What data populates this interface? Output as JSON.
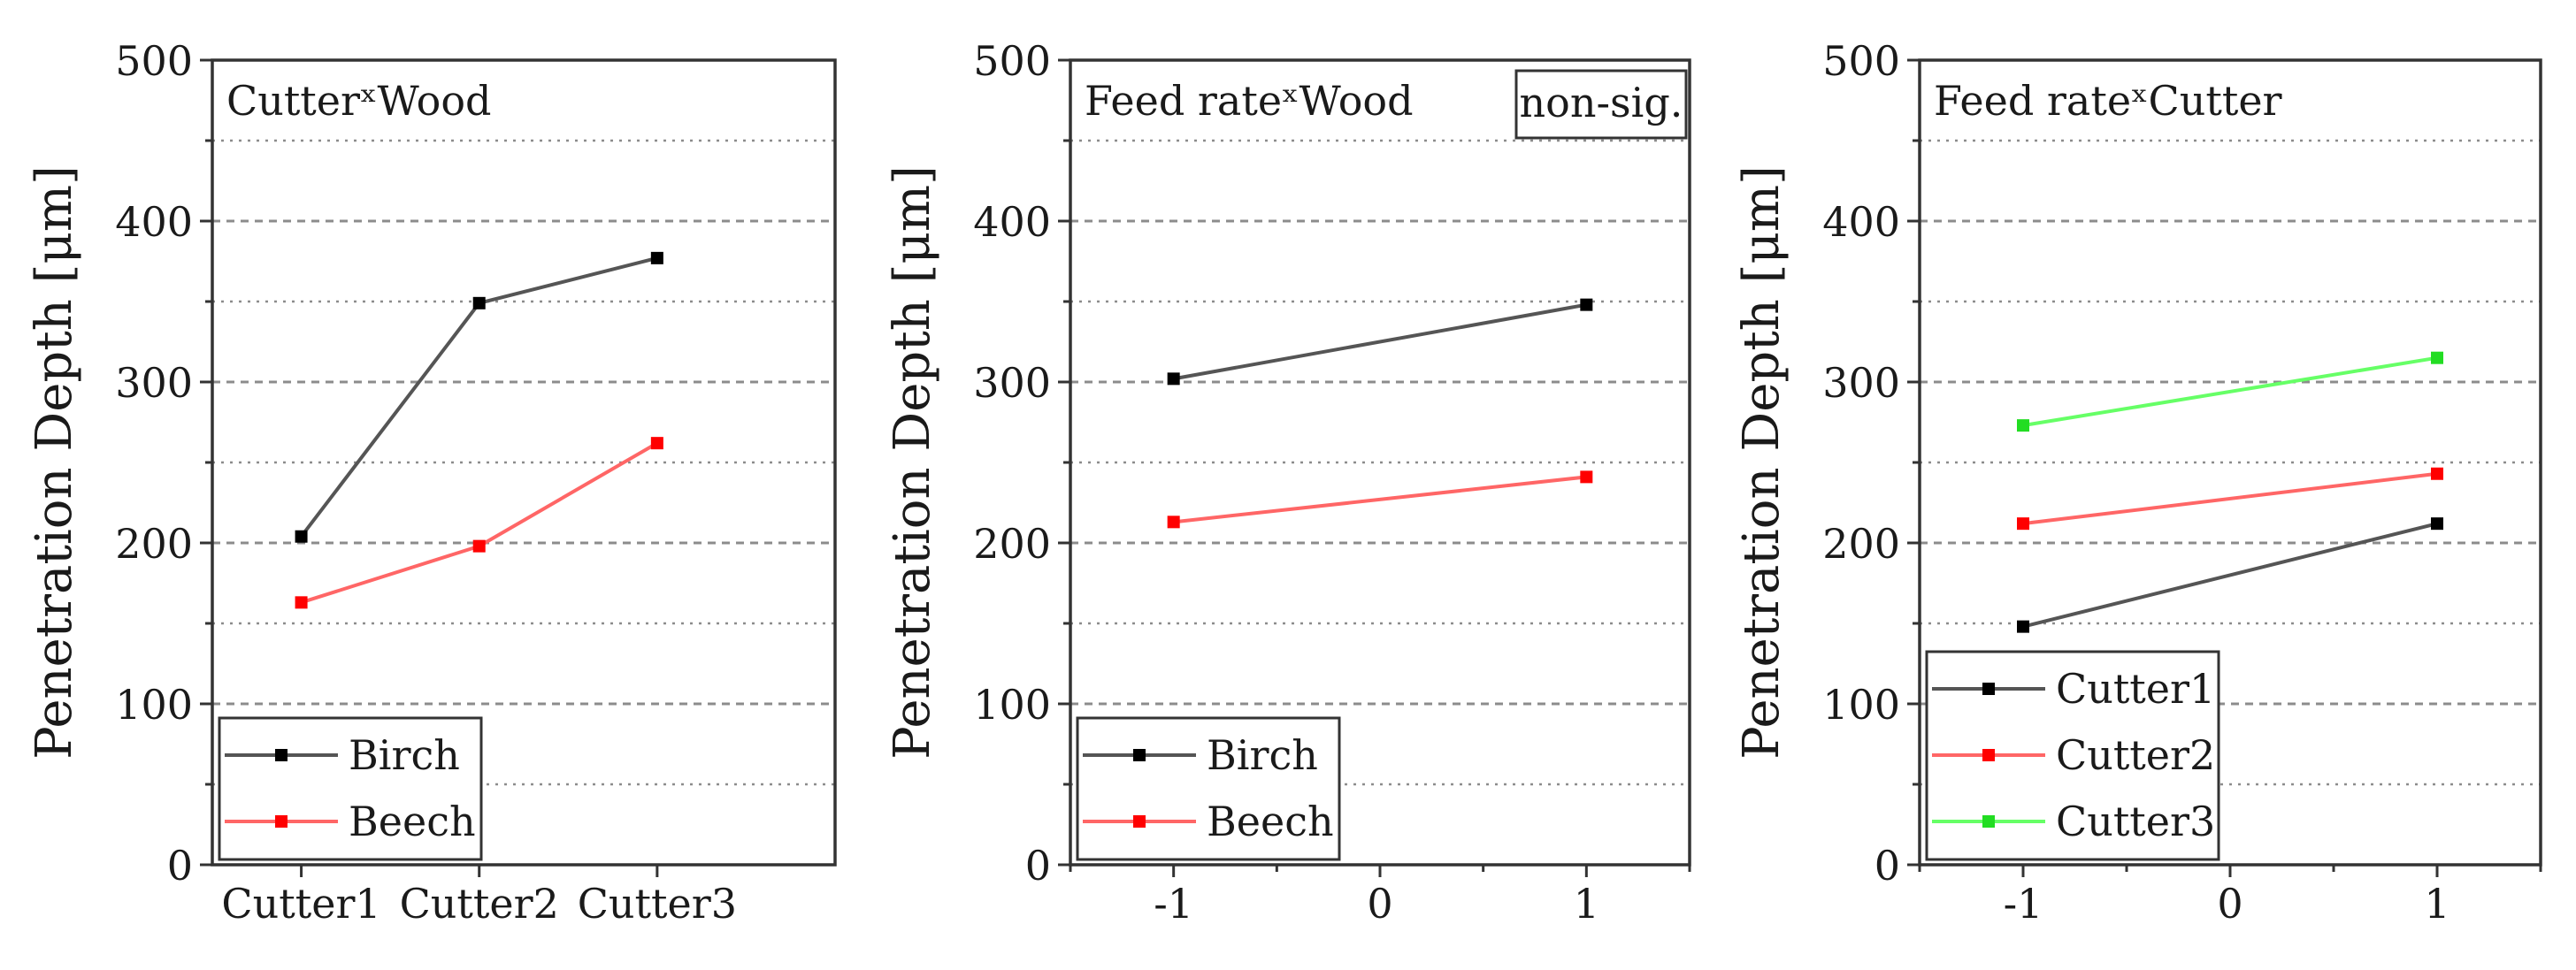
{
  "chart_data": [
    {
      "type": "line",
      "title": "CutterˣWood",
      "ylabel": "Penetration Depth [μm]",
      "xlabel": "",
      "ylim": [
        0,
        500
      ],
      "yticks": [
        0,
        100,
        200,
        300,
        400,
        500
      ],
      "categories": [
        "Cutter1",
        "Cutter2",
        "Cutter3"
      ],
      "grid": true,
      "legend_position": "bottom-left",
      "series": [
        {
          "name": "Birch",
          "color": "#000000",
          "line_color": "#555555",
          "values": [
            204,
            349,
            377
          ]
        },
        {
          "name": "Beech",
          "color": "#ff0000",
          "line_color": "#ff6666",
          "values": [
            163,
            198,
            262
          ]
        }
      ]
    },
    {
      "type": "line",
      "title": "Feed rateˣWood",
      "annotation": "non-sig.",
      "ylabel": "Penetration Depth [μm]",
      "xlabel": "",
      "ylim": [
        0,
        500
      ],
      "yticks": [
        0,
        100,
        200,
        300,
        400,
        500
      ],
      "xlim": [
        -1.5,
        1.5
      ],
      "xticks": [
        -1,
        0,
        1
      ],
      "grid": true,
      "legend_position": "bottom-left",
      "series": [
        {
          "name": "Birch",
          "color": "#000000",
          "line_color": "#555555",
          "x": [
            -1,
            1
          ],
          "values": [
            302,
            348
          ]
        },
        {
          "name": "Beech",
          "color": "#ff0000",
          "line_color": "#ff6666",
          "x": [
            -1,
            1
          ],
          "values": [
            213,
            241
          ]
        }
      ]
    },
    {
      "type": "line",
      "title": "Feed rateˣCutter",
      "ylabel": "Penetration Depth [μm]",
      "xlabel": "",
      "ylim": [
        0,
        500
      ],
      "yticks": [
        0,
        100,
        200,
        300,
        400,
        500
      ],
      "xlim": [
        -1.5,
        1.5
      ],
      "xticks": [
        -1,
        0,
        1
      ],
      "grid": true,
      "legend_position": "bottom-left",
      "series": [
        {
          "name": "Cutter1",
          "color": "#000000",
          "line_color": "#555555",
          "x": [
            -1,
            1
          ],
          "values": [
            148,
            212
          ]
        },
        {
          "name": "Cutter2",
          "color": "#ff0000",
          "line_color": "#ff6666",
          "x": [
            -1,
            1
          ],
          "values": [
            212,
            243
          ]
        },
        {
          "name": "Cutter3",
          "color": "#22dd22",
          "line_color": "#66ff66",
          "x": [
            -1,
            1
          ],
          "values": [
            273,
            315
          ]
        }
      ]
    }
  ]
}
